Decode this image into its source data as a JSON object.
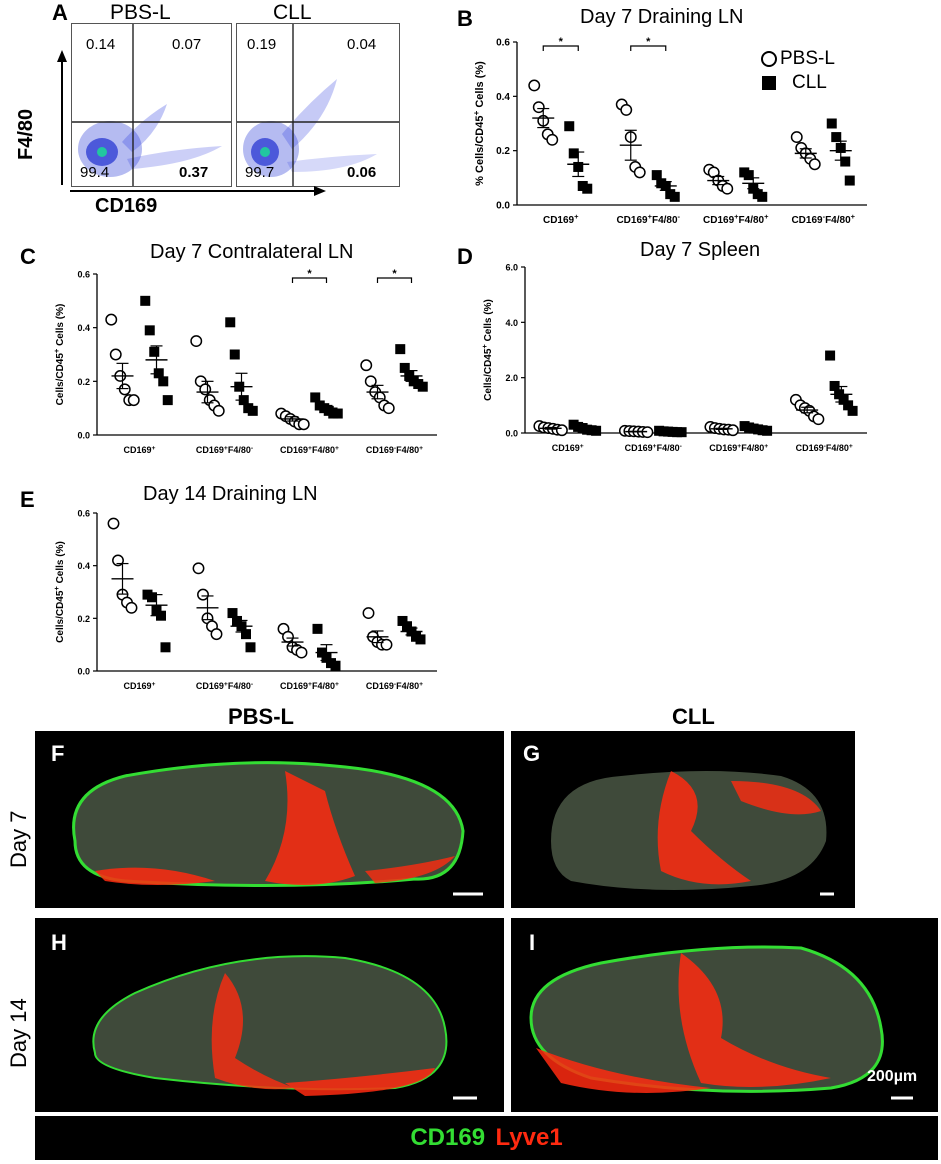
{
  "panel_letters": {
    "A": "A",
    "B": "B",
    "C": "C",
    "D": "D",
    "E": "E",
    "F": "F",
    "G": "G",
    "H": "H",
    "I": "I"
  },
  "flow": {
    "groups": [
      {
        "label": "PBS-L",
        "quadrants": {
          "ul": "0.14",
          "ur": "0.07",
          "ll": "99.4",
          "lr": "0.37"
        }
      },
      {
        "label": "CLL",
        "quadrants": {
          "ul": "0.19",
          "ur": "0.04",
          "ll": "99.7",
          "lr": "0.06"
        }
      }
    ],
    "ylabel": "F4/80",
    "xlabel": "CD169"
  },
  "legend": {
    "open": "PBS-L",
    "filled": "CLL"
  },
  "chart_data": [
    {
      "id": "B",
      "type": "scatter",
      "title": "Day 7 Draining LN",
      "ylabel": "% Cells/CD45+ Cells (%)",
      "yticks": [
        "0.0",
        "0.2",
        "0.4",
        "0.6"
      ],
      "ylim": [
        0,
        0.6
      ],
      "categories": [
        "CD169+",
        "CD169+F4/80-",
        "CD169+F4/80+",
        "CD169-F4/80+"
      ],
      "significance": [
        0,
        1
      ],
      "series": [
        {
          "name": "PBS-L",
          "marker": "open-circle",
          "points": [
            [
              0.44,
              0.36,
              0.31,
              0.26,
              0.24
            ],
            [
              0.37,
              0.35,
              0.25,
              0.14,
              0.12
            ],
            [
              0.13,
              0.12,
              0.09,
              0.07,
              0.06
            ],
            [
              0.25,
              0.21,
              0.19,
              0.17,
              0.15
            ]
          ],
          "mean": [
            0.32,
            0.22,
            0.09,
            0.19
          ],
          "sem": [
            0.035,
            0.055,
            0.015,
            0.017
          ]
        },
        {
          "name": "CLL",
          "marker": "filled-square",
          "points": [
            [
              0.29,
              0.19,
              0.14,
              0.07,
              0.06
            ],
            [
              0.11,
              0.08,
              0.07,
              0.04,
              0.03
            ],
            [
              0.12,
              0.11,
              0.06,
              0.04,
              0.03
            ],
            [
              0.3,
              0.25,
              0.21,
              0.16,
              0.09
            ]
          ],
          "mean": [
            0.15,
            0.07,
            0.08,
            0.2
          ],
          "sem": [
            0.045,
            0.016,
            0.02,
            0.035
          ]
        }
      ]
    },
    {
      "id": "C",
      "type": "scatter",
      "title": "Day 7 Contralateral LN",
      "ylabel": "Cells/CD45+ Cells (%)",
      "yticks": [
        "0.0",
        "0.2",
        "0.4",
        "0.6"
      ],
      "ylim": [
        0,
        0.6
      ],
      "categories": [
        "CD169+",
        "CD169+F4/80-",
        "CD169+F4/80+",
        "CD169-F4/80+"
      ],
      "significance": [
        2,
        3
      ],
      "series": [
        {
          "name": "PBS-L",
          "marker": "open-circle",
          "points": [
            [
              0.43,
              0.3,
              0.22,
              0.17,
              0.13,
              0.13
            ],
            [
              0.35,
              0.2,
              0.17,
              0.13,
              0.11,
              0.09
            ],
            [
              0.08,
              0.07,
              0.06,
              0.05,
              0.04,
              0.04
            ],
            [
              0.26,
              0.2,
              0.16,
              0.14,
              0.11,
              0.1
            ]
          ],
          "mean": [
            0.22,
            0.16,
            0.06,
            0.16
          ],
          "sem": [
            0.047,
            0.04,
            0.008,
            0.025
          ]
        },
        {
          "name": "CLL",
          "marker": "filled-square",
          "points": [
            [
              0.5,
              0.39,
              0.31,
              0.23,
              0.2,
              0.13
            ],
            [
              0.42,
              0.3,
              0.18,
              0.13,
              0.1,
              0.09
            ],
            [
              0.14,
              0.11,
              0.1,
              0.09,
              0.08,
              0.08
            ],
            [
              0.32,
              0.25,
              0.22,
              0.2,
              0.19,
              0.18
            ]
          ],
          "mean": [
            0.28,
            0.18,
            0.1,
            0.22
          ],
          "sem": [
            0.052,
            0.05,
            0.01,
            0.02
          ]
        }
      ]
    },
    {
      "id": "D",
      "type": "scatter",
      "title": "Day 7 Spleen",
      "ylabel": "Cells/CD45+ Cells (%)",
      "yticks": [
        "0.0",
        "2.0",
        "4.0",
        "6.0"
      ],
      "ylim": [
        0,
        6
      ],
      "categories": [
        "CD169+",
        "CD169+F4/80-",
        "CD169+F4/80+",
        "CD169-F4/80+"
      ],
      "significance": [],
      "series": [
        {
          "name": "PBS-L",
          "marker": "open-circle",
          "points": [
            [
              0.25,
              0.2,
              0.18,
              0.15,
              0.12,
              0.1
            ],
            [
              0.08,
              0.07,
              0.06,
              0.05,
              0.04,
              0.03
            ],
            [
              0.22,
              0.18,
              0.15,
              0.13,
              0.12,
              0.1
            ],
            [
              1.2,
              1.0,
              0.9,
              0.8,
              0.6,
              0.5
            ]
          ],
          "mean": [
            0.17,
            0.05,
            0.15,
            0.83
          ],
          "sem": [
            0.03,
            0.01,
            0.02,
            0.1
          ]
        },
        {
          "name": "CLL",
          "marker": "filled-square",
          "points": [
            [
              0.3,
              0.22,
              0.18,
              0.12,
              0.1,
              0.08
            ],
            [
              0.08,
              0.06,
              0.05,
              0.04,
              0.03,
              0.03
            ],
            [
              0.25,
              0.2,
              0.16,
              0.13,
              0.1,
              0.08
            ],
            [
              2.8,
              1.7,
              1.4,
              1.2,
              1.0,
              0.8
            ]
          ],
          "mean": [
            0.17,
            0.05,
            0.15,
            1.4
          ],
          "sem": [
            0.035,
            0.01,
            0.025,
            0.28
          ]
        }
      ]
    },
    {
      "id": "E",
      "type": "scatter",
      "title": "Day 14 Draining LN",
      "ylabel": "Cells/CD45+ Cells (%)",
      "yticks": [
        "0.0",
        "0.2",
        "0.4",
        "0.6"
      ],
      "ylim": [
        0,
        0.6
      ],
      "categories": [
        "CD169+",
        "CD169+F4/80-",
        "CD169+F4/80+",
        "CD169-F4/80+"
      ],
      "significance": [],
      "series": [
        {
          "name": "PBS-L",
          "marker": "open-circle",
          "points": [
            [
              0.56,
              0.42,
              0.29,
              0.26,
              0.24
            ],
            [
              0.39,
              0.29,
              0.2,
              0.17,
              0.14
            ],
            [
              0.16,
              0.13,
              0.09,
              0.08,
              0.07
            ],
            [
              0.22,
              0.13,
              0.11,
              0.1,
              0.1
            ]
          ],
          "mean": [
            0.35,
            0.24,
            0.11,
            0.13
          ],
          "sem": [
            0.058,
            0.045,
            0.015,
            0.022
          ]
        },
        {
          "name": "CLL",
          "marker": "filled-square",
          "points": [
            [
              0.29,
              0.28,
              0.23,
              0.21,
              0.09
            ],
            [
              0.22,
              0.19,
              0.17,
              0.14,
              0.09
            ],
            [
              0.16,
              0.07,
              0.05,
              0.03,
              0.02
            ],
            [
              0.19,
              0.17,
              0.15,
              0.13,
              0.12
            ]
          ],
          "mean": [
            0.25,
            0.17,
            0.07,
            0.15
          ],
          "sem": [
            0.04,
            0.022,
            0.03,
            0.013
          ]
        }
      ]
    }
  ],
  "micro": {
    "col_titles": [
      "PBS-L",
      "CLL"
    ],
    "row_titles": [
      "Day 7",
      "Day 14"
    ],
    "scale": "200µm",
    "legend_green": "CD169",
    "legend_red": "Lyve1",
    "green": "#33dd33",
    "red": "#ff2a10"
  }
}
